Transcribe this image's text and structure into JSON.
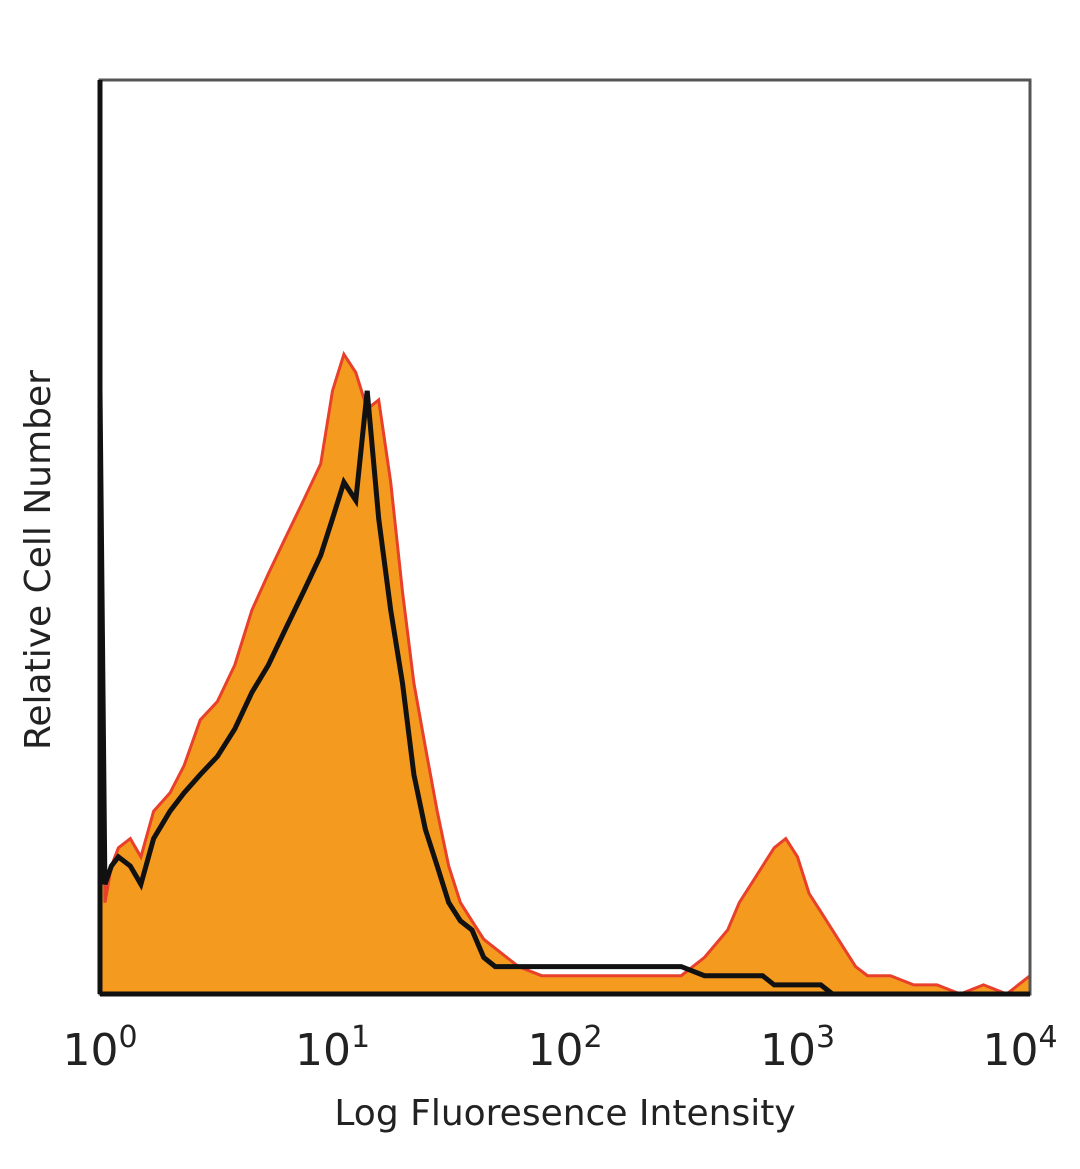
{
  "chart_data": {
    "type": "area",
    "title": "",
    "xlabel": "Log Fluoresence Intensity",
    "ylabel": "Relative Cell Number",
    "x_scale": "log",
    "xlim": [
      1,
      10000
    ],
    "ylim": [
      0,
      100
    ],
    "grid": false,
    "legend": "none",
    "x_ticks": [
      {
        "value": 1,
        "base": "10",
        "exp": "0"
      },
      {
        "value": 10,
        "base": "10",
        "exp": "1"
      },
      {
        "value": 100,
        "base": "10",
        "exp": "2"
      },
      {
        "value": 1000,
        "base": "10",
        "exp": "3"
      },
      {
        "value": 10000,
        "base": "10",
        "exp": "4"
      }
    ],
    "series": [
      {
        "role": "stained",
        "fill_color": "#f39a1f",
        "edge_color": "#e8402a",
        "x": [
          1.0,
          1.05,
          1.12,
          1.2,
          1.35,
          1.5,
          1.7,
          2.0,
          2.3,
          2.7,
          3.2,
          3.8,
          4.5,
          5.3,
          6.3,
          7.5,
          8.9,
          10.0,
          11.2,
          12.6,
          14.1,
          15.8,
          17.8,
          20.0,
          22.4,
          25.1,
          28.2,
          31.6,
          35.5,
          39.8,
          44.7,
          50.1,
          63.1,
          79.4,
          100,
          126,
          158,
          200,
          251,
          316,
          398,
          501,
          562,
          631,
          708,
          794,
          891,
          1000,
          1122,
          1259,
          1413,
          1585,
          1778,
          2000,
          2512,
          3162,
          3981,
          5012,
          6310,
          7943,
          10000
        ],
        "y": [
          65,
          10,
          14,
          16,
          17,
          15,
          20,
          22,
          25,
          30,
          32,
          36,
          42,
          46,
          50,
          54,
          58,
          66,
          70,
          68,
          64,
          65,
          56,
          44,
          34,
          27,
          20,
          14,
          10,
          8,
          6,
          5,
          3,
          2,
          2,
          2,
          2,
          2,
          2,
          2,
          4,
          7,
          10,
          12,
          14,
          16,
          17,
          15,
          11,
          9,
          7,
          5,
          3,
          2,
          2,
          1,
          1,
          0,
          1,
          0,
          2
        ]
      },
      {
        "role": "control",
        "line_color": "#111111",
        "x": [
          1.0,
          1.05,
          1.12,
          1.2,
          1.35,
          1.5,
          1.7,
          2.0,
          2.3,
          2.7,
          3.2,
          3.8,
          4.5,
          5.3,
          6.3,
          7.5,
          8.9,
          10.0,
          11.2,
          12.6,
          14.1,
          15.8,
          17.8,
          20.0,
          22.4,
          25.1,
          28.2,
          31.6,
          35.5,
          39.8,
          44.7,
          50.1,
          63.1,
          79.4,
          100,
          126,
          158,
          200,
          251,
          316,
          398,
          501,
          562,
          631,
          708,
          794,
          891,
          1000,
          1122,
          1259,
          1413,
          1585,
          1778,
          2000,
          2512,
          3162,
          3981,
          5012,
          6310,
          7943,
          10000
        ],
        "y": [
          66,
          12,
          14,
          15,
          14,
          12,
          17,
          20,
          22,
          24,
          26,
          29,
          33,
          36,
          40,
          44,
          48,
          52,
          56,
          54,
          66,
          52,
          42,
          34,
          24,
          18,
          14,
          10,
          8,
          7,
          4,
          3,
          3,
          3,
          3,
          3,
          3,
          3,
          3,
          3,
          2,
          2,
          2,
          2,
          2,
          1,
          1,
          1,
          1,
          1,
          0,
          0,
          0,
          0,
          0,
          0,
          0,
          0,
          0,
          0,
          0
        ]
      }
    ]
  }
}
